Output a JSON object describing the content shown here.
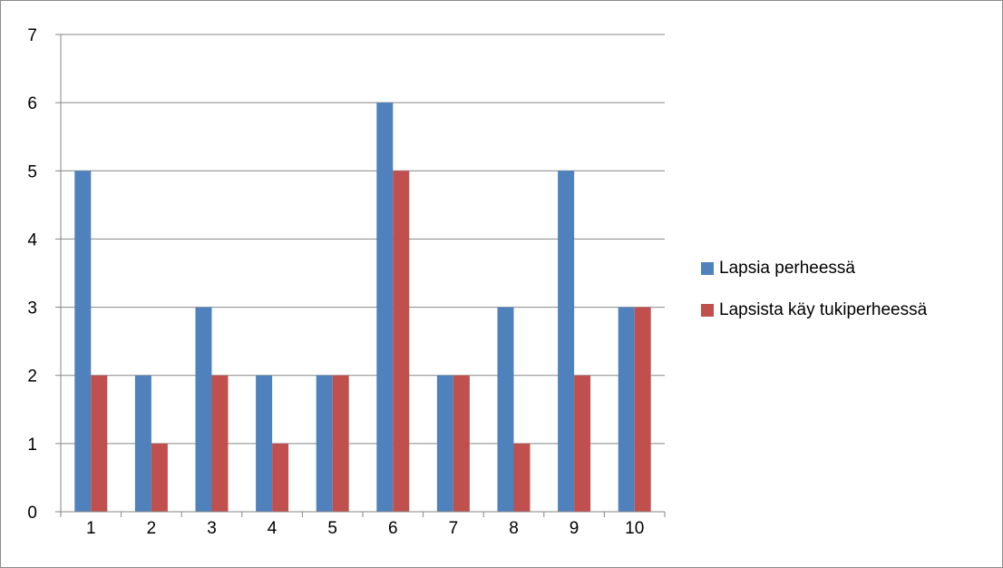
{
  "chart_data": {
    "type": "bar",
    "title": "",
    "xlabel": "",
    "ylabel": "",
    "categories": [
      "1",
      "2",
      "3",
      "4",
      "5",
      "6",
      "7",
      "8",
      "9",
      "10"
    ],
    "ylim": [
      0,
      7
    ],
    "yticks": [
      "0",
      "1",
      "2",
      "3",
      "4",
      "5",
      "6",
      "7"
    ],
    "grid": "horizontal",
    "legend_position": "right",
    "series": [
      {
        "name": "Lapsia perheessä",
        "color": "#4f81bd",
        "values": [
          5,
          2,
          3,
          2,
          2,
          6,
          2,
          3,
          5,
          3
        ]
      },
      {
        "name": "Lapsista käy tukiperheessä",
        "color": "#c0504d",
        "values": [
          2,
          1,
          2,
          1,
          2,
          5,
          2,
          1,
          2,
          3
        ]
      }
    ]
  }
}
